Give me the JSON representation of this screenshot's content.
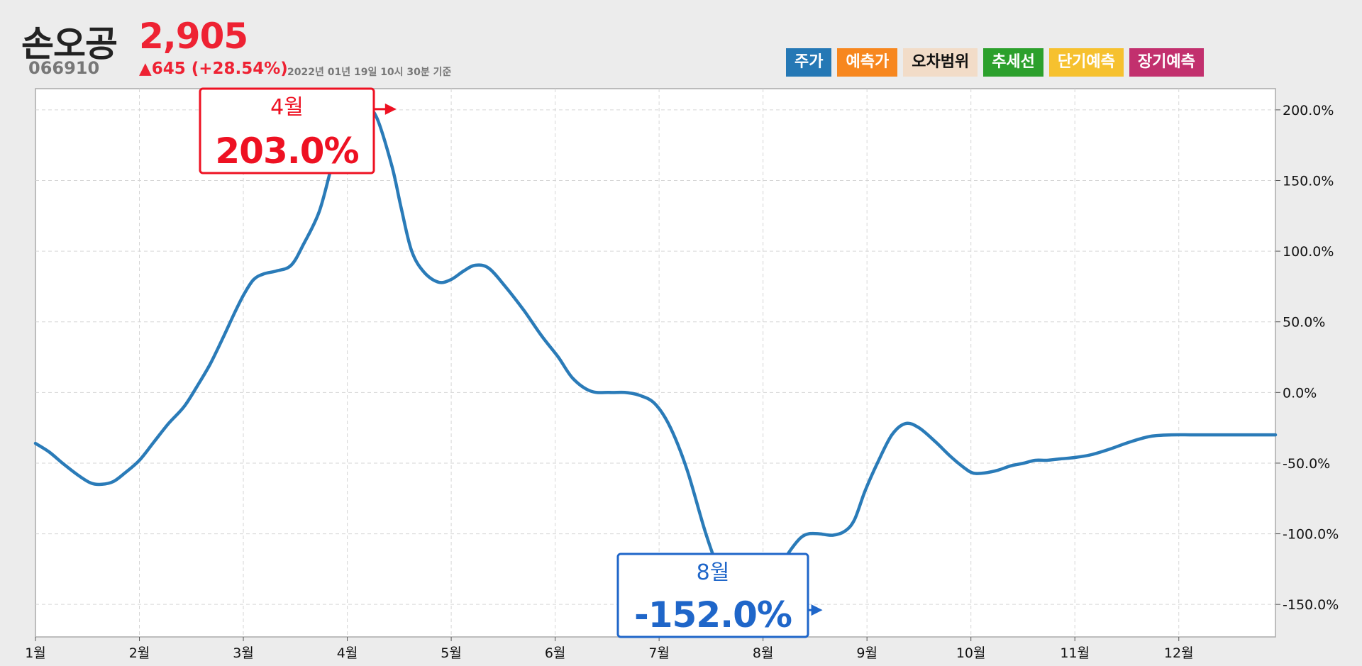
{
  "header": {
    "name": "손오공",
    "price": "2,905",
    "code": "066910",
    "change": "▲645 (+28.54%)",
    "timestamp": "2022년 01년 19일 10시 30분 기준"
  },
  "legend": [
    {
      "label": "주가",
      "bg": "#2578b5",
      "color": "#ffffff"
    },
    {
      "label": "예측가",
      "bg": "#f7871f",
      "color": "#ffffff"
    },
    {
      "label": "오차범위",
      "bg": "#f2dcc8",
      "color": "#111111"
    },
    {
      "label": "추세선",
      "bg": "#2ca02c",
      "color": "#ffffff"
    },
    {
      "label": "단기예측",
      "bg": "#f6c12f",
      "color": "#ffffff"
    },
    {
      "label": "장기예측",
      "bg": "#c2306e",
      "color": "#ffffff"
    }
  ],
  "colors": {
    "line": "#2a7bb8",
    "price_up": "#ee2233",
    "max_callout": "#ee1122",
    "min_callout": "#1f66c9",
    "grid": "#d6d6d6"
  },
  "chart_data": {
    "type": "line",
    "title": "",
    "xlabel": "",
    "ylabel": "",
    "x_ticks": [
      "1월",
      "2월",
      "3월",
      "4월",
      "5월",
      "6월",
      "7월",
      "8월",
      "9월",
      "10월",
      "11월",
      "12월"
    ],
    "x_range": [
      1,
      12.93
    ],
    "ylim": [
      -173,
      215
    ],
    "y_ticks": [
      200,
      150,
      100,
      50,
      0,
      -50,
      -100,
      -150
    ],
    "y_tick_labels": [
      "200.0%",
      "150.0%",
      "100.0%",
      "50.0%",
      "0.0%",
      "-50.0%",
      "-100.0%",
      "-150.0%"
    ],
    "grid": true,
    "y_axis_side": "right",
    "series": [
      {
        "x": [
          1.0,
          1.13,
          1.26,
          1.4,
          1.53,
          1.64,
          1.75,
          1.86,
          2.0,
          2.14,
          2.28,
          2.43,
          2.56,
          2.68,
          2.8,
          2.92,
          3.01,
          3.1,
          3.2,
          3.32,
          3.46,
          3.58,
          3.73,
          3.85,
          3.94,
          4.04,
          4.15,
          4.28,
          4.43,
          4.52,
          4.62,
          4.74,
          4.88,
          5.0,
          5.12,
          5.23,
          5.36,
          5.52,
          5.7,
          5.87,
          6.03,
          6.17,
          6.34,
          6.52,
          6.67,
          6.81,
          6.96,
          7.11,
          7.27,
          7.45,
          7.6,
          7.76,
          7.84,
          7.93,
          8.04,
          8.15,
          8.26,
          8.36,
          8.44,
          8.54,
          8.67,
          8.79,
          8.88,
          8.98,
          9.1,
          9.24,
          9.37,
          9.5,
          9.66,
          9.8,
          9.93,
          10.02,
          10.13,
          10.26,
          10.38,
          10.51,
          10.62,
          10.73,
          10.86,
          11.0,
          11.16,
          11.34,
          11.53,
          11.73,
          11.94,
          12.12,
          12.32,
          12.52,
          12.7,
          12.81,
          12.93
        ],
        "y": [
          -36,
          -42,
          -50,
          -58,
          -64,
          -65,
          -63,
          -57,
          -48,
          -35,
          -22,
          -10,
          5,
          20,
          38,
          57,
          70,
          80,
          84,
          86,
          90,
          105,
          128,
          160,
          180,
          195,
          203,
          195,
          160,
          130,
          100,
          85,
          78,
          80,
          86,
          90,
          88,
          75,
          58,
          40,
          25,
          10,
          1,
          0,
          0,
          -2,
          -8,
          -25,
          -55,
          -100,
          -130,
          -150,
          -152,
          -150,
          -140,
          -125,
          -112,
          -103,
          -100,
          -100,
          -101,
          -98,
          -90,
          -70,
          -50,
          -30,
          -22,
          -25,
          -35,
          -45,
          -53,
          -57,
          -57,
          -55,
          -52,
          -50,
          -48,
          -48,
          -47,
          -46,
          -44,
          -40,
          -35,
          -31,
          -30,
          -30,
          -30,
          -30,
          -30,
          -30,
          -30
        ]
      }
    ],
    "annotations": [
      {
        "kind": "max",
        "month": "4월",
        "value": "203.0%",
        "x": 4.5,
        "y": 203
      },
      {
        "kind": "min",
        "month": "8월",
        "value": "-152.0%",
        "x": 8.6,
        "y": -152
      }
    ]
  }
}
